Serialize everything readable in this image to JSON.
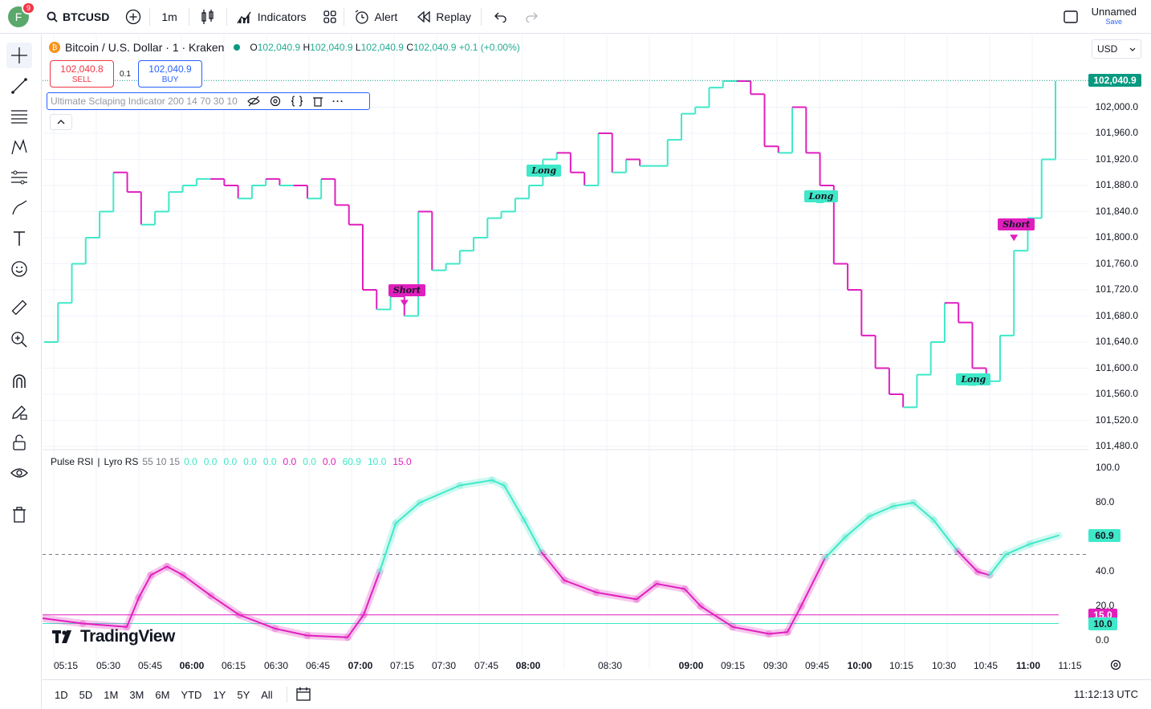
{
  "header": {
    "avatar_letter": "F",
    "avatar_badge": "9",
    "symbol": "BTCUSD",
    "interval": "1m",
    "indicators_label": "Indicators",
    "alert_label": "Alert",
    "replay_label": "Replay",
    "layout_name": "Unnamed",
    "save_label": "Save"
  },
  "legend": {
    "title": "Bitcoin / U.S. Dollar · 1 · Kraken",
    "o_label": "O",
    "o_value": "102,040.9",
    "h_label": "H",
    "h_value": "102,040.9",
    "l_label": "L",
    "l_value": "102,040.9",
    "c_label": "C",
    "c_value": "102,040.9",
    "change": "+0.1 (+0.00%)"
  },
  "trade": {
    "sell_price": "102,040.8",
    "sell_label": "SELL",
    "buy_price": "102,040.9",
    "buy_label": "BUY",
    "spread": "0.1"
  },
  "indicator": {
    "name": "Ultimate Sclaping Indicator 200 14 70 30 10"
  },
  "currency": "USD",
  "price_scale": {
    "labels": [
      "102,000.0",
      "101,960.0",
      "101,920.0",
      "101,880.0",
      "101,840.0",
      "101,800.0",
      "101,760.0",
      "101,720.0",
      "101,680.0",
      "101,640.0",
      "101,600.0",
      "101,560.0",
      "101,520.0",
      "101,480.0"
    ],
    "current": "102,040.9"
  },
  "rsi": {
    "title": "Pulse RSI",
    "sep": "|",
    "name": "Lyro RS",
    "params": "55 10 15",
    "values": [
      {
        "v": "0.0",
        "color": "#3fe8c8"
      },
      {
        "v": "0.0",
        "color": "#3fe8c8"
      },
      {
        "v": "0.0",
        "color": "#3fe8c8"
      },
      {
        "v": "0.0",
        "color": "#3fe8c8"
      },
      {
        "v": "0.0",
        "color": "#3fe8c8"
      },
      {
        "v": "0.0",
        "color": "#e01fbd"
      },
      {
        "v": "0.0",
        "color": "#3fe8c8"
      },
      {
        "v": "0.0",
        "color": "#e01fbd"
      },
      {
        "v": "60.9",
        "color": "#3fe8c8"
      },
      {
        "v": "10.0",
        "color": "#3fe8c8"
      },
      {
        "v": "15.0",
        "color": "#e01fbd"
      }
    ],
    "scale": [
      "100.0",
      "80.0",
      "60.9",
      "40.0",
      "20.0",
      "15.0",
      "10.0",
      "0.0"
    ]
  },
  "time_axis": [
    {
      "t": "05:15",
      "bold": false
    },
    {
      "t": "05:30",
      "bold": false
    },
    {
      "t": "05:45",
      "bold": false
    },
    {
      "t": "06:00",
      "bold": true
    },
    {
      "t": "06:15",
      "bold": false
    },
    {
      "t": "06:30",
      "bold": false
    },
    {
      "t": "06:45",
      "bold": false
    },
    {
      "t": "07:00",
      "bold": true
    },
    {
      "t": "07:15",
      "bold": false
    },
    {
      "t": "07:30",
      "bold": false
    },
    {
      "t": "07:45",
      "bold": false
    },
    {
      "t": "08:00",
      "bold": true
    },
    {
      "t": "08:30",
      "bold": false
    },
    {
      "t": "09:00",
      "bold": true
    },
    {
      "t": "09:15",
      "bold": false
    },
    {
      "t": "09:30",
      "bold": false
    },
    {
      "t": "09:45",
      "bold": false
    },
    {
      "t": "10:00",
      "bold": true
    },
    {
      "t": "10:15",
      "bold": false
    },
    {
      "t": "10:30",
      "bold": false
    },
    {
      "t": "10:45",
      "bold": false
    },
    {
      "t": "11:00",
      "bold": true
    },
    {
      "t": "11:15",
      "bold": false
    }
  ],
  "ranges": [
    "1D",
    "5D",
    "1M",
    "3M",
    "6M",
    "YTD",
    "1Y",
    "5Y",
    "All"
  ],
  "clock": "11:12:13 UTC",
  "brand": "TradingView",
  "signals": [
    {
      "label": "Short",
      "type": "short"
    },
    {
      "label": "Long",
      "type": "long"
    },
    {
      "label": "Long",
      "type": "long"
    },
    {
      "label": "Long",
      "type": "long"
    },
    {
      "label": "Short",
      "type": "short"
    }
  ],
  "colors": {
    "bull": "#3fe8c8",
    "bear": "#e01fbd",
    "price_tag": "#089981",
    "sell": "#f23645",
    "buy": "#2962ff"
  },
  "chart_data": {
    "type": "line",
    "title": "Bitcoin / U.S. Dollar · 1 · Kraken",
    "xlabel": "",
    "ylabel": "",
    "ylim": [
      101480,
      102040
    ],
    "x": [
      "05:05",
      "05:10",
      "05:15",
      "05:20",
      "05:25",
      "05:30",
      "05:35",
      "05:40",
      "05:45",
      "05:50",
      "05:55",
      "06:00",
      "06:05",
      "06:10",
      "06:15",
      "06:20",
      "06:25",
      "06:30",
      "06:35",
      "06:40",
      "06:45",
      "06:50",
      "06:55",
      "07:00",
      "07:05",
      "07:10",
      "07:15",
      "07:20",
      "07:25",
      "07:30",
      "07:35",
      "07:40",
      "07:45",
      "07:50",
      "07:55",
      "08:00",
      "08:05",
      "08:10",
      "08:15",
      "08:20",
      "08:25",
      "08:30",
      "08:35",
      "08:40",
      "08:45",
      "08:50",
      "08:55",
      "09:00",
      "09:05",
      "09:10",
      "09:15",
      "09:20",
      "09:25",
      "09:30",
      "09:35",
      "09:40",
      "09:45",
      "09:50",
      "09:55",
      "10:00",
      "10:05",
      "10:10",
      "10:15",
      "10:20",
      "10:25",
      "10:30",
      "10:35",
      "10:40",
      "10:45",
      "10:50",
      "10:55",
      "11:00",
      "11:05",
      "11:10"
    ],
    "series": [
      {
        "values": [
          101640,
          101700,
          101760,
          101800,
          101840,
          101900,
          101870,
          101820,
          101840,
          101870,
          101880,
          101890,
          101890,
          101880,
          101860,
          101880,
          101890,
          101880,
          101880,
          101860,
          101890,
          101850,
          101820,
          101720,
          101690,
          101710,
          101680,
          101840,
          101750,
          101760,
          101780,
          101800,
          101830,
          101840,
          101860,
          101880,
          101920,
          101930,
          101900,
          101880,
          101960,
          101900,
          101920,
          101910,
          101910,
          101950,
          101990,
          102000,
          102030,
          102040,
          102040,
          102020,
          101940,
          101930,
          102000,
          101930,
          101880,
          101760,
          101720,
          101650,
          101600,
          101560,
          101540,
          101590,
          101640,
          101700,
          101670,
          101600,
          101580,
          101650,
          101780,
          101830,
          101920,
          102040
        ],
        "color": "bull/bear stepped"
      }
    ],
    "markers": [
      {
        "x": "07:15",
        "label": "Long"
      },
      {
        "x": "08:05",
        "label": "Short"
      },
      {
        "x": "09:45",
        "label": "Long"
      },
      {
        "x": "10:40",
        "label": "Short"
      },
      {
        "x": "10:55",
        "label": "Long"
      }
    ],
    "current_price": 102040.9,
    "grid": true
  }
}
